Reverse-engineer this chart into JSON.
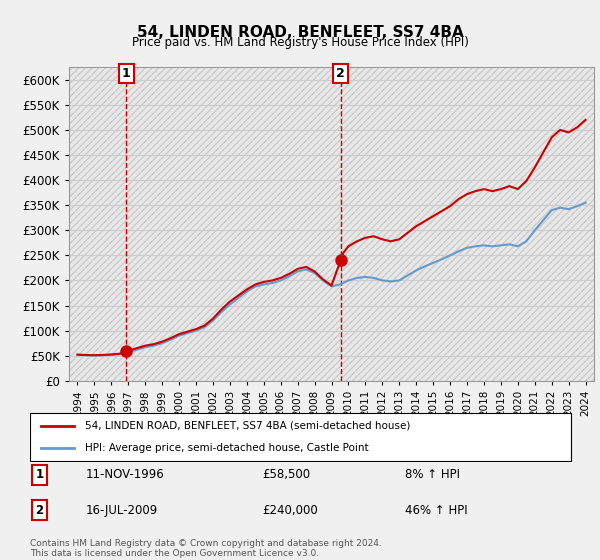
{
  "title": "54, LINDEN ROAD, BENFLEET, SS7 4BA",
  "subtitle": "Price paid vs. HM Land Registry's House Price Index (HPI)",
  "legend_line1": "54, LINDEN ROAD, BENFLEET, SS7 4BA (semi-detached house)",
  "legend_line2": "HPI: Average price, semi-detached house, Castle Point",
  "footer": "Contains HM Land Registry data © Crown copyright and database right 2024.\nThis data is licensed under the Open Government Licence v3.0.",
  "transaction1_label": "1",
  "transaction1_date": "11-NOV-1996",
  "transaction1_price": "£58,500",
  "transaction1_hpi": "8% ↑ HPI",
  "transaction1_year": 1996.87,
  "transaction1_value": 58500,
  "transaction2_label": "2",
  "transaction2_date": "16-JUL-2009",
  "transaction2_price": "£240,000",
  "transaction2_hpi": "46% ↑ HPI",
  "transaction2_year": 2009.54,
  "transaction2_value": 240000,
  "hpi_color": "#6699cc",
  "price_color": "#cc0000",
  "dot_color": "#cc0000",
  "vline_color": "#cc0000",
  "ylim": [
    0,
    625000
  ],
  "yticks": [
    0,
    50000,
    100000,
    150000,
    200000,
    250000,
    300000,
    350000,
    400000,
    450000,
    500000,
    550000,
    600000
  ],
  "background_color": "#f0f0f0",
  "plot_bg_color": "#ffffff",
  "grid_color": "#cccccc",
  "hpi_data": {
    "years": [
      1994.0,
      1994.5,
      1995.0,
      1995.5,
      1996.0,
      1996.5,
      1997.0,
      1997.5,
      1998.0,
      1998.5,
      1999.0,
      1999.5,
      2000.0,
      2000.5,
      2001.0,
      2001.5,
      2002.0,
      2002.5,
      2003.0,
      2003.5,
      2004.0,
      2004.5,
      2005.0,
      2005.5,
      2006.0,
      2006.5,
      2007.0,
      2007.5,
      2008.0,
      2008.5,
      2009.0,
      2009.5,
      2010.0,
      2010.5,
      2011.0,
      2011.5,
      2012.0,
      2012.5,
      2013.0,
      2013.5,
      2014.0,
      2014.5,
      2015.0,
      2015.5,
      2016.0,
      2016.5,
      2017.0,
      2017.5,
      2018.0,
      2018.5,
      2019.0,
      2019.5,
      2020.0,
      2020.5,
      2021.0,
      2021.5,
      2022.0,
      2022.5,
      2023.0,
      2023.5,
      2024.0
    ],
    "values": [
      52000,
      51000,
      50500,
      51000,
      52000,
      53000,
      57000,
      62000,
      67000,
      70000,
      75000,
      82000,
      90000,
      95000,
      100000,
      107000,
      120000,
      137000,
      152000,
      165000,
      178000,
      188000,
      192000,
      195000,
      200000,
      208000,
      218000,
      222000,
      215000,
      200000,
      188000,
      192000,
      200000,
      205000,
      207000,
      205000,
      200000,
      198000,
      200000,
      210000,
      220000,
      228000,
      235000,
      242000,
      250000,
      258000,
      265000,
      268000,
      270000,
      268000,
      270000,
      272000,
      268000,
      278000,
      300000,
      320000,
      340000,
      345000,
      342000,
      348000,
      355000
    ]
  },
  "price_data": {
    "years": [
      1994.0,
      1994.5,
      1995.0,
      1995.5,
      1996.0,
      1996.5,
      1996.87,
      1997.0,
      1997.5,
      1998.0,
      1998.5,
      1999.0,
      1999.5,
      2000.0,
      2000.5,
      2001.0,
      2001.5,
      2002.0,
      2002.5,
      2003.0,
      2003.5,
      2004.0,
      2004.5,
      2005.0,
      2005.5,
      2006.0,
      2006.5,
      2007.0,
      2007.5,
      2008.0,
      2008.5,
      2009.0,
      2009.54,
      2009.7,
      2010.0,
      2010.5,
      2011.0,
      2011.5,
      2012.0,
      2012.5,
      2013.0,
      2013.5,
      2014.0,
      2014.5,
      2015.0,
      2015.5,
      2016.0,
      2016.5,
      2017.0,
      2017.5,
      2018.0,
      2018.5,
      2019.0,
      2019.5,
      2020.0,
      2020.5,
      2021.0,
      2021.5,
      2022.0,
      2022.5,
      2023.0,
      2023.5,
      2024.0
    ],
    "values": [
      52000,
      51500,
      51000,
      51500,
      52500,
      54000,
      58500,
      60000,
      65000,
      70000,
      73000,
      78000,
      85000,
      93000,
      98000,
      103000,
      110000,
      124000,
      142000,
      158000,
      170000,
      182000,
      192000,
      197000,
      200000,
      205000,
      213000,
      223000,
      227000,
      218000,
      202000,
      190000,
      240000,
      255000,
      268000,
      278000,
      285000,
      288000,
      282000,
      278000,
      282000,
      295000,
      308000,
      318000,
      328000,
      338000,
      348000,
      362000,
      372000,
      378000,
      382000,
      378000,
      382000,
      388000,
      382000,
      398000,
      425000,
      455000,
      485000,
      500000,
      495000,
      505000,
      520000
    ]
  }
}
